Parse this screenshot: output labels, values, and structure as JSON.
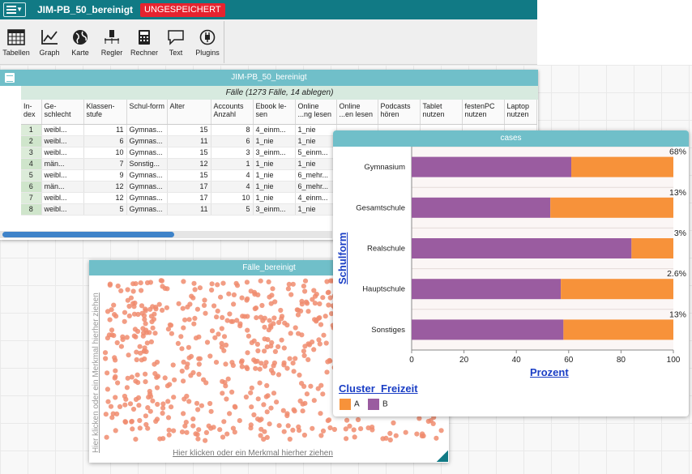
{
  "app": {
    "doc_title": "JIM-PB_50_bereinigt",
    "unsaved_label": "UNGESPEICHERT"
  },
  "toolbar": {
    "items": [
      {
        "label": "Tabellen",
        "icon": "table-icon"
      },
      {
        "label": "Graph",
        "icon": "graph-icon"
      },
      {
        "label": "Karte",
        "icon": "globe-icon"
      },
      {
        "label": "Regler",
        "icon": "slider-icon"
      },
      {
        "label": "Rechner",
        "icon": "calculator-icon"
      },
      {
        "label": "Text",
        "icon": "text-icon"
      },
      {
        "label": "Plugins",
        "icon": "plugin-icon"
      }
    ]
  },
  "table": {
    "title": "JIM-PB_50_bereinigt",
    "subtitle": "Fälle (1273 Fälle, 14 ablegen)",
    "columns": [
      "In-dex",
      "Ge-schlecht",
      "Klassen-stufe",
      "Schul-form",
      "Alter",
      "Accounts Anzahl",
      "Ebook le-sen",
      "Online ...ng lesen",
      "Online ...en lesen",
      "Podcasts hören",
      "Tablet nutzen",
      "festenPC nutzen",
      "Laptop nutzen"
    ],
    "rows": [
      [
        "1",
        "weibl...",
        "11",
        "Gymnas...",
        "15",
        "8",
        "4_einm...",
        "1_nie",
        "",
        "",
        "",
        "",
        ""
      ],
      [
        "2",
        "weibl...",
        "6",
        "Gymnas...",
        "11",
        "6",
        "1_nie",
        "1_nie",
        "",
        "",
        "",
        "",
        ""
      ],
      [
        "3",
        "weibl...",
        "10",
        "Gymnas...",
        "15",
        "3",
        "3_einm...",
        "5_einm...",
        "",
        "",
        "",
        "",
        ""
      ],
      [
        "4",
        "män...",
        "7",
        "Sonstig...",
        "12",
        "1",
        "1_nie",
        "1_nie",
        "",
        "",
        "",
        "",
        ""
      ],
      [
        "5",
        "weibl...",
        "9",
        "Gymnas...",
        "15",
        "4",
        "1_nie",
        "6_mehr...",
        "",
        "",
        "",
        "",
        ""
      ],
      [
        "6",
        "män...",
        "12",
        "Gymnas...",
        "17",
        "4",
        "1_nie",
        "6_mehr...",
        "",
        "",
        "",
        "",
        ""
      ],
      [
        "7",
        "weibl...",
        "12",
        "Gymnas...",
        "17",
        "10",
        "1_nie",
        "4_einm...",
        "",
        "",
        "",
        "",
        ""
      ],
      [
        "8",
        "weibl...",
        "5",
        "Gymnas...",
        "11",
        "5",
        "3_einm...",
        "1_nie",
        "",
        "",
        "",
        "",
        ""
      ]
    ]
  },
  "scatter": {
    "title": "Fälle_bereinigt",
    "x_hint": "Hier klicken oder ein Merkmal hierher ziehen",
    "y_hint": "Hier klicken oder ein Merkmal hierher ziehen",
    "point_color": "#f08c6e"
  },
  "chart": {
    "title": "cases",
    "legend_title": "Cluster_Freizeit",
    "legend_items": [
      {
        "label": "A",
        "color": "#f7923a"
      },
      {
        "label": "B",
        "color": "#9a5ca0"
      }
    ]
  },
  "chart_data": {
    "type": "bar",
    "orientation": "horizontal",
    "stacked": true,
    "categories": [
      "Gymnasium",
      "Gesamtschule",
      "Realschule",
      "Hauptschule",
      "Sonstiges"
    ],
    "series": [
      {
        "name": "B",
        "values": [
          61,
          53,
          84,
          57,
          58
        ],
        "color": "#9a5ca0"
      },
      {
        "name": "A",
        "values": [
          39,
          47,
          16,
          43,
          42
        ],
        "color": "#f7923a"
      }
    ],
    "bar_labels": [
      "68%",
      "13%",
      "3%",
      "2.6%",
      "13%"
    ],
    "xlabel": "Prozent",
    "ylabel": "Schulform",
    "xlim": [
      0,
      100
    ],
    "xticks": [
      "0",
      "20",
      "40",
      "60",
      "80",
      "100"
    ]
  }
}
